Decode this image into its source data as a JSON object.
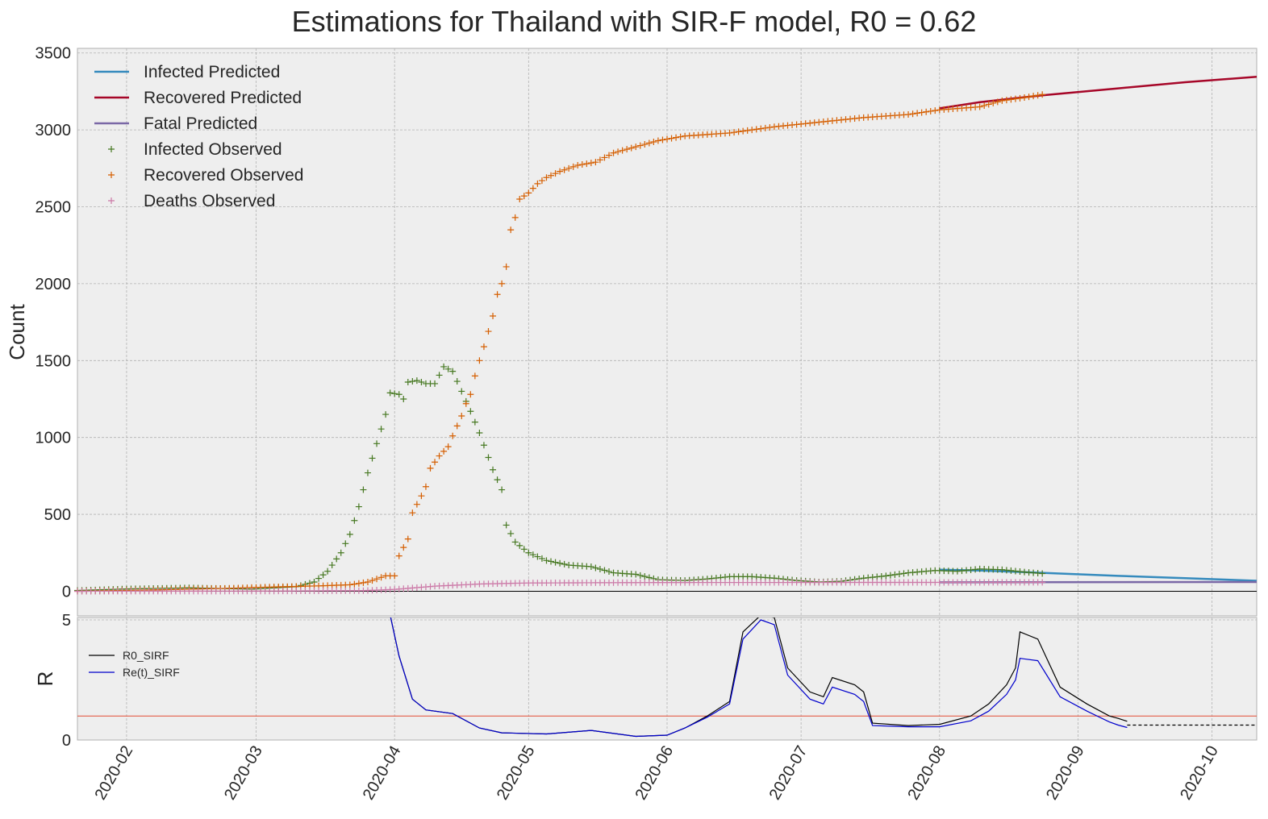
{
  "chart_data": [
    {
      "type": "line",
      "title": "Estimations for Thailand with SIR-F model, R0 = 0.62",
      "xlabel": "",
      "ylabel": "Count",
      "ylim": [
        -160,
        3530
      ],
      "xlim": [
        "2020-01-21",
        "2020-10-11"
      ],
      "yticks": [
        0,
        500,
        1000,
        1500,
        2000,
        2500,
        3000,
        3500
      ],
      "xticks": [
        "2020-02",
        "2020-03",
        "2020-04",
        "2020-05",
        "2020-06",
        "2020-07",
        "2020-08",
        "2020-09",
        "2020-10"
      ],
      "grid": true,
      "legend_position": "top-left",
      "series": [
        {
          "name": "Infected Predicted",
          "kind": "line",
          "color": "#348abd",
          "points": [
            [
              "2020-08-01",
              140
            ],
            [
              "2020-08-10",
              135
            ],
            [
              "2020-08-24",
              120
            ],
            [
              "2020-09-10",
              100
            ],
            [
              "2020-09-25",
              85
            ],
            [
              "2020-10-11",
              68
            ]
          ]
        },
        {
          "name": "Recovered Predicted",
          "kind": "line",
          "color": "#a60628",
          "points": [
            [
              "2020-08-01",
              3140
            ],
            [
              "2020-08-10",
              3180
            ],
            [
              "2020-08-24",
              3225
            ],
            [
              "2020-09-10",
              3270
            ],
            [
              "2020-09-25",
              3310
            ],
            [
              "2020-10-11",
              3345
            ]
          ]
        },
        {
          "name": "Fatal Predicted",
          "kind": "line",
          "color": "#7a68a6",
          "points": [
            [
              "2020-08-01",
              58
            ],
            [
              "2020-10-11",
              60
            ]
          ]
        },
        {
          "name": "Infected Observed",
          "kind": "marker",
          "color": "#467821",
          "points": [
            [
              "2020-01-21",
              5
            ],
            [
              "2020-02-01",
              15
            ],
            [
              "2020-02-15",
              22
            ],
            [
              "2020-02-29",
              14
            ],
            [
              "2020-03-10",
              30
            ],
            [
              "2020-03-14",
              60
            ],
            [
              "2020-03-17",
              130
            ],
            [
              "2020-03-20",
              250
            ],
            [
              "2020-03-22",
              370
            ],
            [
              "2020-03-24",
              550
            ],
            [
              "2020-03-26",
              770
            ],
            [
              "2020-03-28",
              960
            ],
            [
              "2020-03-30",
              1150
            ],
            [
              "2020-03-31",
              1290
            ],
            [
              "2020-04-02",
              1280
            ],
            [
              "2020-04-03",
              1250
            ],
            [
              "2020-04-04",
              1360
            ],
            [
              "2020-04-06",
              1370
            ],
            [
              "2020-04-08",
              1350
            ],
            [
              "2020-04-10",
              1350
            ],
            [
              "2020-04-12",
              1460
            ],
            [
              "2020-04-14",
              1430
            ],
            [
              "2020-04-16",
              1300
            ],
            [
              "2020-04-18",
              1170
            ],
            [
              "2020-04-20",
              1030
            ],
            [
              "2020-04-22",
              870
            ],
            [
              "2020-04-23",
              790
            ],
            [
              "2020-04-25",
              660
            ],
            [
              "2020-04-26",
              430
            ],
            [
              "2020-04-28",
              320
            ],
            [
              "2020-05-01",
              250
            ],
            [
              "2020-05-05",
              200
            ],
            [
              "2020-05-10",
              170
            ],
            [
              "2020-05-15",
              160
            ],
            [
              "2020-05-20",
              120
            ],
            [
              "2020-05-25",
              110
            ],
            [
              "2020-05-30",
              75
            ],
            [
              "2020-06-05",
              70
            ],
            [
              "2020-06-10",
              80
            ],
            [
              "2020-06-15",
              95
            ],
            [
              "2020-06-20",
              95
            ],
            [
              "2020-06-25",
              85
            ],
            [
              "2020-06-30",
              70
            ],
            [
              "2020-07-05",
              60
            ],
            [
              "2020-07-10",
              65
            ],
            [
              "2020-07-15",
              85
            ],
            [
              "2020-07-20",
              100
            ],
            [
              "2020-07-25",
              120
            ],
            [
              "2020-07-31",
              135
            ],
            [
              "2020-08-05",
              130
            ],
            [
              "2020-08-10",
              145
            ],
            [
              "2020-08-15",
              140
            ],
            [
              "2020-08-20",
              125
            ],
            [
              "2020-08-24",
              115
            ]
          ]
        },
        {
          "name": "Recovered Observed",
          "kind": "marker",
          "color": "#d55e00",
          "points": [
            [
              "2020-01-21",
              0
            ],
            [
              "2020-02-10",
              10
            ],
            [
              "2020-02-25",
              20
            ],
            [
              "2020-03-01",
              25
            ],
            [
              "2020-03-15",
              35
            ],
            [
              "2020-03-22",
              42
            ],
            [
              "2020-03-26",
              60
            ],
            [
              "2020-03-28",
              80
            ],
            [
              "2020-03-30",
              100
            ],
            [
              "2020-04-01",
              100
            ],
            [
              "2020-04-02",
              230
            ],
            [
              "2020-04-04",
              340
            ],
            [
              "2020-04-05",
              510
            ],
            [
              "2020-04-07",
              620
            ],
            [
              "2020-04-08",
              680
            ],
            [
              "2020-04-09",
              800
            ],
            [
              "2020-04-11",
              880
            ],
            [
              "2020-04-13",
              940
            ],
            [
              "2020-04-14",
              1010
            ],
            [
              "2020-04-16",
              1140
            ],
            [
              "2020-04-17",
              1220
            ],
            [
              "2020-04-18",
              1280
            ],
            [
              "2020-04-19",
              1400
            ],
            [
              "2020-04-20",
              1500
            ],
            [
              "2020-04-21",
              1590
            ],
            [
              "2020-04-22",
              1690
            ],
            [
              "2020-04-23",
              1790
            ],
            [
              "2020-04-24",
              1930
            ],
            [
              "2020-04-25",
              2000
            ],
            [
              "2020-04-26",
              2110
            ],
            [
              "2020-04-27",
              2350
            ],
            [
              "2020-04-28",
              2430
            ],
            [
              "2020-04-29",
              2550
            ],
            [
              "2020-05-01",
              2590
            ],
            [
              "2020-05-03",
              2650
            ],
            [
              "2020-05-05",
              2690
            ],
            [
              "2020-05-08",
              2730
            ],
            [
              "2020-05-12",
              2770
            ],
            [
              "2020-05-16",
              2790
            ],
            [
              "2020-05-20",
              2850
            ],
            [
              "2020-05-25",
              2890
            ],
            [
              "2020-05-30",
              2930
            ],
            [
              "2020-06-05",
              2960
            ],
            [
              "2020-06-15",
              2980
            ],
            [
              "2020-06-25",
              3020
            ],
            [
              "2020-07-05",
              3050
            ],
            [
              "2020-07-15",
              3080
            ],
            [
              "2020-07-25",
              3100
            ],
            [
              "2020-08-01",
              3130
            ],
            [
              "2020-08-10",
              3150
            ],
            [
              "2020-08-15",
              3190
            ],
            [
              "2020-08-20",
              3210
            ],
            [
              "2020-08-24",
              3230
            ]
          ]
        },
        {
          "name": "Deaths Observed",
          "kind": "marker",
          "color": "#cc79a7",
          "points": [
            [
              "2020-01-21",
              0
            ],
            [
              "2020-03-01",
              1
            ],
            [
              "2020-03-25",
              4
            ],
            [
              "2020-04-01",
              12
            ],
            [
              "2020-04-10",
              33
            ],
            [
              "2020-04-20",
              47
            ],
            [
              "2020-05-01",
              54
            ],
            [
              "2020-06-01",
              57
            ],
            [
              "2020-08-24",
              58
            ]
          ]
        }
      ]
    },
    {
      "type": "line",
      "title": "",
      "xlabel": "",
      "ylabel": "R",
      "ylim": [
        0,
        5.1
      ],
      "yticks": [
        0,
        5
      ],
      "grid": true,
      "legend_position": "top-left",
      "threshold": {
        "value": 1.0,
        "color": "#e24a33"
      },
      "series": [
        {
          "name": "R0_SIRF",
          "color": "#000000",
          "points": [
            [
              "2020-03-31",
              5.2
            ],
            [
              "2020-04-02",
              3.5
            ],
            [
              "2020-04-05",
              1.7
            ],
            [
              "2020-04-08",
              1.25
            ],
            [
              "2020-04-14",
              1.1
            ],
            [
              "2020-04-20",
              0.5
            ],
            [
              "2020-04-25",
              0.3
            ],
            [
              "2020-05-05",
              0.25
            ],
            [
              "2020-05-15",
              0.4
            ],
            [
              "2020-05-25",
              0.15
            ],
            [
              "2020-06-01",
              0.2
            ],
            [
              "2020-06-05",
              0.5
            ],
            [
              "2020-06-10",
              1.0
            ],
            [
              "2020-06-15",
              1.6
            ],
            [
              "2020-06-18",
              4.5
            ],
            [
              "2020-06-22",
              5.2
            ],
            [
              "2020-06-25",
              5.1
            ],
            [
              "2020-06-28",
              3.0
            ],
            [
              "2020-07-03",
              2.0
            ],
            [
              "2020-07-06",
              1.8
            ],
            [
              "2020-07-08",
              2.6
            ],
            [
              "2020-07-13",
              2.3
            ],
            [
              "2020-07-15",
              2.0
            ],
            [
              "2020-07-17",
              0.7
            ],
            [
              "2020-07-25",
              0.6
            ],
            [
              "2020-08-01",
              0.65
            ],
            [
              "2020-08-08",
              1.0
            ],
            [
              "2020-08-12",
              1.5
            ],
            [
              "2020-08-16",
              2.3
            ],
            [
              "2020-08-18",
              3.0
            ],
            [
              "2020-08-19",
              4.5
            ],
            [
              "2020-08-23",
              4.2
            ],
            [
              "2020-08-25",
              3.4
            ],
            [
              "2020-08-28",
              2.2
            ],
            [
              "2020-09-03",
              1.5
            ],
            [
              "2020-09-08",
              1.0
            ],
            [
              "2020-09-10",
              0.9
            ],
            [
              "2020-09-12",
              0.78
            ]
          ]
        },
        {
          "name": "Re(t)_SIRF",
          "color": "#0000cc",
          "points": [
            [
              "2020-03-31",
              5.2
            ],
            [
              "2020-04-02",
              3.5
            ],
            [
              "2020-04-05",
              1.7
            ],
            [
              "2020-04-08",
              1.25
            ],
            [
              "2020-04-14",
              1.1
            ],
            [
              "2020-04-20",
              0.5
            ],
            [
              "2020-04-25",
              0.3
            ],
            [
              "2020-05-05",
              0.25
            ],
            [
              "2020-05-15",
              0.4
            ],
            [
              "2020-05-25",
              0.15
            ],
            [
              "2020-06-01",
              0.2
            ],
            [
              "2020-06-05",
              0.5
            ],
            [
              "2020-06-10",
              0.95
            ],
            [
              "2020-06-15",
              1.5
            ],
            [
              "2020-06-18",
              4.2
            ],
            [
              "2020-06-22",
              5.0
            ],
            [
              "2020-06-25",
              4.8
            ],
            [
              "2020-06-28",
              2.7
            ],
            [
              "2020-07-03",
              1.7
            ],
            [
              "2020-07-06",
              1.5
            ],
            [
              "2020-07-08",
              2.2
            ],
            [
              "2020-07-13",
              1.9
            ],
            [
              "2020-07-15",
              1.6
            ],
            [
              "2020-07-17",
              0.6
            ],
            [
              "2020-07-25",
              0.55
            ],
            [
              "2020-08-01",
              0.55
            ],
            [
              "2020-08-08",
              0.8
            ],
            [
              "2020-08-12",
              1.2
            ],
            [
              "2020-08-16",
              1.9
            ],
            [
              "2020-08-18",
              2.5
            ],
            [
              "2020-08-19",
              3.4
            ],
            [
              "2020-08-23",
              3.3
            ],
            [
              "2020-08-25",
              2.7
            ],
            [
              "2020-08-28",
              1.8
            ],
            [
              "2020-09-03",
              1.2
            ],
            [
              "2020-09-08",
              0.75
            ],
            [
              "2020-09-10",
              0.62
            ],
            [
              "2020-09-12",
              0.52
            ]
          ]
        },
        {
          "name": "",
          "color": "#000000",
          "dashed": true,
          "points": [
            [
              "2020-09-12",
              0.62
            ],
            [
              "2020-10-11",
              0.62
            ]
          ]
        }
      ]
    }
  ]
}
